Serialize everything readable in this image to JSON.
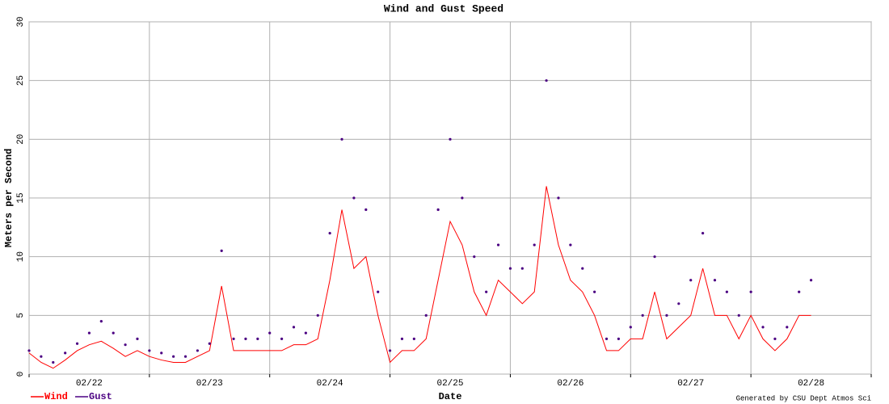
{
  "chart_data": {
    "type": "line",
    "title": "Wind and Gust Speed",
    "x_label": "Date",
    "y_label": "Meters per Second",
    "credit": "Generated by CSU Dept Atmos Sci",
    "x": [
      0,
      0.1,
      0.2,
      0.3,
      0.4,
      0.5,
      0.6,
      0.7,
      0.8,
      0.9,
      1,
      1.1,
      1.2,
      1.3,
      1.4,
      1.5,
      1.6,
      1.7,
      1.8,
      1.9,
      2,
      2.1,
      2.2,
      2.3,
      2.4,
      2.5,
      2.6,
      2.7,
      2.8,
      2.9,
      3,
      3.1,
      3.2,
      3.3,
      3.4,
      3.5,
      3.6,
      3.7,
      3.8,
      3.9,
      4,
      4.1,
      4.2,
      4.3,
      4.4,
      4.5,
      4.6,
      4.7,
      4.8,
      4.9,
      5,
      5.1,
      5.2,
      5.3,
      5.4,
      5.5,
      5.6,
      5.7,
      5.8,
      5.9,
      6,
      6.1,
      6.2,
      6.3,
      6.4,
      6.5
    ],
    "series": [
      {
        "name": "Wind",
        "color": "#ff0000",
        "style": "line",
        "values": [
          1.8,
          1,
          0.5,
          1.2,
          2,
          2.5,
          2.8,
          2.2,
          1.5,
          2,
          1.5,
          1.2,
          1,
          1,
          1.5,
          2,
          7.5,
          2,
          2,
          2,
          2,
          2,
          2.5,
          2.5,
          3,
          8,
          14,
          9,
          10,
          5,
          1,
          2,
          2,
          3,
          8,
          13,
          11,
          7,
          5,
          8,
          7,
          6,
          7,
          16,
          11,
          8,
          7,
          5,
          2,
          2,
          3,
          3,
          7,
          3,
          4,
          5,
          9,
          5,
          5,
          3,
          5,
          3,
          2,
          3,
          5,
          5
        ]
      },
      {
        "name": "Gust",
        "color": "#4b0082",
        "style": "points",
        "values": [
          2,
          1.5,
          1,
          1.8,
          2.6,
          3.5,
          4.5,
          3.5,
          2.5,
          3,
          2,
          1.8,
          1.5,
          1.5,
          2,
          2.6,
          10.5,
          3,
          3,
          3,
          3.5,
          3,
          4,
          3.5,
          5,
          12,
          20,
          15,
          14,
          7,
          2,
          3,
          3,
          5,
          14,
          20,
          15,
          10,
          7,
          11,
          9,
          9,
          11,
          25,
          15,
          11,
          9,
          7,
          3,
          3,
          4,
          5,
          10,
          5,
          6,
          8,
          12,
          8,
          7,
          5,
          7,
          4,
          3,
          4,
          7,
          8
        ]
      }
    ],
    "xlim": [
      0,
      7
    ],
    "xgrid": [
      0,
      1,
      2,
      3,
      4,
      5,
      6,
      7
    ],
    "xticks": [
      {
        "value": 0.5,
        "label": "02/22"
      },
      {
        "value": 1.5,
        "label": "02/23"
      },
      {
        "value": 2.5,
        "label": "02/24"
      },
      {
        "value": 3.5,
        "label": "02/25"
      },
      {
        "value": 4.5,
        "label": "02/26"
      },
      {
        "value": 5.5,
        "label": "02/27"
      },
      {
        "value": 6.5,
        "label": "02/28"
      }
    ],
    "ylim": [
      0,
      30
    ],
    "yticks": [
      0,
      5,
      10,
      15,
      20,
      25,
      30
    ],
    "grid": true,
    "legend": "bottom-left"
  }
}
